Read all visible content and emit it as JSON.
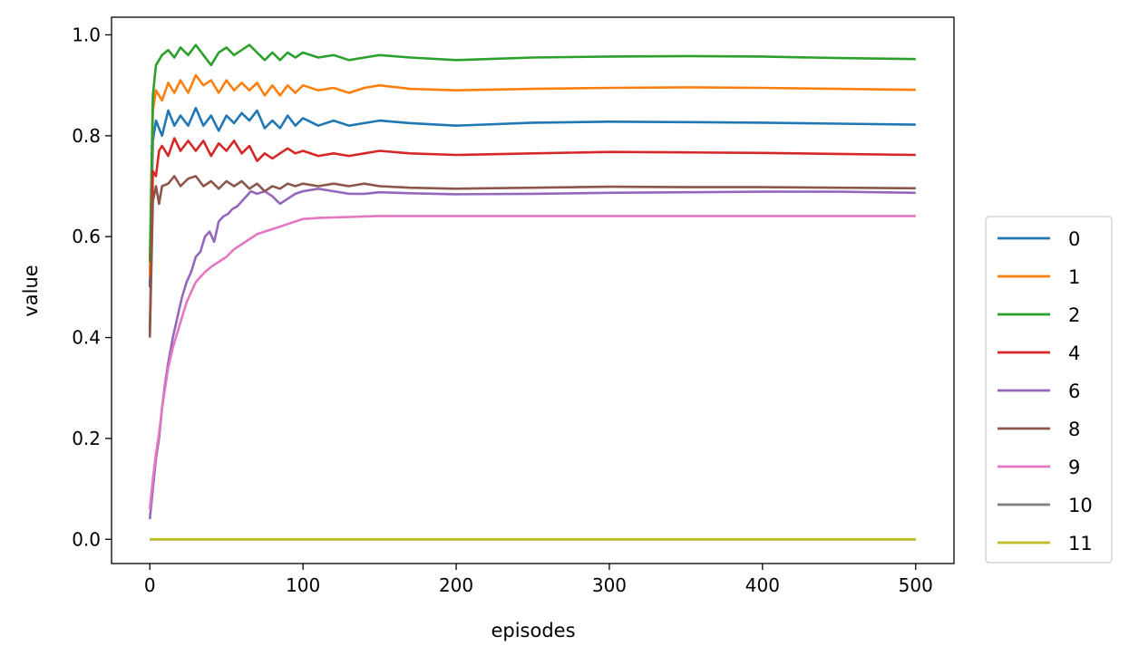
{
  "chart_data": {
    "type": "line",
    "title": "",
    "xlabel": "episodes",
    "ylabel": "value",
    "xlim": [
      -25,
      525
    ],
    "ylim": [
      -0.048,
      1.035
    ],
    "xticks": [
      0,
      100,
      200,
      300,
      400,
      500
    ],
    "yticks": [
      0.0,
      0.2,
      0.4,
      0.6,
      0.8,
      1.0
    ],
    "xtick_labels": [
      "0",
      "100",
      "200",
      "300",
      "400",
      "500"
    ],
    "ytick_labels": [
      "0.0",
      "0.2",
      "0.4",
      "0.6",
      "0.8",
      "1.0"
    ],
    "grid": false,
    "legend_position": "outside-right",
    "series": [
      {
        "name": "0",
        "color": "#1f77b4",
        "points": [
          [
            0,
            0.5
          ],
          [
            2,
            0.79
          ],
          [
            4,
            0.83
          ],
          [
            8,
            0.8
          ],
          [
            12,
            0.85
          ],
          [
            16,
            0.82
          ],
          [
            20,
            0.84
          ],
          [
            25,
            0.82
          ],
          [
            30,
            0.855
          ],
          [
            35,
            0.82
          ],
          [
            40,
            0.84
          ],
          [
            45,
            0.81
          ],
          [
            50,
            0.84
          ],
          [
            55,
            0.825
          ],
          [
            60,
            0.845
          ],
          [
            65,
            0.83
          ],
          [
            70,
            0.85
          ],
          [
            75,
            0.815
          ],
          [
            80,
            0.83
          ],
          [
            85,
            0.815
          ],
          [
            90,
            0.84
          ],
          [
            95,
            0.82
          ],
          [
            100,
            0.835
          ],
          [
            110,
            0.82
          ],
          [
            120,
            0.83
          ],
          [
            130,
            0.82
          ],
          [
            140,
            0.825
          ],
          [
            150,
            0.83
          ],
          [
            170,
            0.825
          ],
          [
            200,
            0.82
          ],
          [
            250,
            0.826
          ],
          [
            300,
            0.828
          ],
          [
            350,
            0.827
          ],
          [
            400,
            0.826
          ],
          [
            450,
            0.824
          ],
          [
            500,
            0.822
          ]
        ]
      },
      {
        "name": "1",
        "color": "#ff7f0e",
        "points": [
          [
            0,
            0.52
          ],
          [
            2,
            0.85
          ],
          [
            4,
            0.89
          ],
          [
            8,
            0.87
          ],
          [
            12,
            0.905
          ],
          [
            16,
            0.885
          ],
          [
            20,
            0.91
          ],
          [
            25,
            0.885
          ],
          [
            30,
            0.92
          ],
          [
            35,
            0.9
          ],
          [
            40,
            0.91
          ],
          [
            45,
            0.885
          ],
          [
            50,
            0.91
          ],
          [
            55,
            0.89
          ],
          [
            60,
            0.905
          ],
          [
            65,
            0.89
          ],
          [
            70,
            0.905
          ],
          [
            75,
            0.88
          ],
          [
            80,
            0.9
          ],
          [
            85,
            0.88
          ],
          [
            90,
            0.9
          ],
          [
            95,
            0.885
          ],
          [
            100,
            0.9
          ],
          [
            110,
            0.89
          ],
          [
            120,
            0.895
          ],
          [
            130,
            0.885
          ],
          [
            140,
            0.895
          ],
          [
            150,
            0.9
          ],
          [
            170,
            0.893
          ],
          [
            200,
            0.89
          ],
          [
            250,
            0.893
          ],
          [
            300,
            0.895
          ],
          [
            350,
            0.896
          ],
          [
            400,
            0.895
          ],
          [
            450,
            0.893
          ],
          [
            500,
            0.891
          ]
        ]
      },
      {
        "name": "2",
        "color": "#2ca02c",
        "points": [
          [
            0,
            0.55
          ],
          [
            2,
            0.88
          ],
          [
            4,
            0.94
          ],
          [
            8,
            0.96
          ],
          [
            12,
            0.97
          ],
          [
            16,
            0.955
          ],
          [
            20,
            0.975
          ],
          [
            25,
            0.96
          ],
          [
            30,
            0.98
          ],
          [
            35,
            0.96
          ],
          [
            40,
            0.94
          ],
          [
            45,
            0.965
          ],
          [
            50,
            0.975
          ],
          [
            55,
            0.96
          ],
          [
            60,
            0.97
          ],
          [
            65,
            0.98
          ],
          [
            70,
            0.965
          ],
          [
            75,
            0.95
          ],
          [
            80,
            0.965
          ],
          [
            85,
            0.95
          ],
          [
            90,
            0.965
          ],
          [
            95,
            0.955
          ],
          [
            100,
            0.965
          ],
          [
            110,
            0.955
          ],
          [
            120,
            0.96
          ],
          [
            130,
            0.95
          ],
          [
            140,
            0.955
          ],
          [
            150,
            0.96
          ],
          [
            170,
            0.955
          ],
          [
            200,
            0.95
          ],
          [
            220,
            0.952
          ],
          [
            250,
            0.955
          ],
          [
            300,
            0.957
          ],
          [
            350,
            0.958
          ],
          [
            400,
            0.957
          ],
          [
            450,
            0.954
          ],
          [
            500,
            0.952
          ]
        ]
      },
      {
        "name": "4",
        "color": "#d62728",
        "points": [
          [
            0,
            0.41
          ],
          [
            2,
            0.73
          ],
          [
            4,
            0.72
          ],
          [
            6,
            0.77
          ],
          [
            8,
            0.78
          ],
          [
            12,
            0.76
          ],
          [
            16,
            0.795
          ],
          [
            20,
            0.77
          ],
          [
            25,
            0.79
          ],
          [
            30,
            0.77
          ],
          [
            35,
            0.79
          ],
          [
            40,
            0.76
          ],
          [
            45,
            0.785
          ],
          [
            50,
            0.77
          ],
          [
            55,
            0.79
          ],
          [
            60,
            0.765
          ],
          [
            65,
            0.78
          ],
          [
            70,
            0.75
          ],
          [
            75,
            0.765
          ],
          [
            80,
            0.755
          ],
          [
            85,
            0.765
          ],
          [
            90,
            0.775
          ],
          [
            95,
            0.765
          ],
          [
            100,
            0.77
          ],
          [
            110,
            0.76
          ],
          [
            120,
            0.765
          ],
          [
            130,
            0.76
          ],
          [
            140,
            0.765
          ],
          [
            150,
            0.77
          ],
          [
            170,
            0.765
          ],
          [
            200,
            0.762
          ],
          [
            250,
            0.765
          ],
          [
            300,
            0.768
          ],
          [
            350,
            0.767
          ],
          [
            400,
            0.766
          ],
          [
            450,
            0.764
          ],
          [
            500,
            0.762
          ]
        ]
      },
      {
        "name": "6",
        "color": "#9467bd",
        "points": [
          [
            0,
            0.04
          ],
          [
            2,
            0.1
          ],
          [
            4,
            0.16
          ],
          [
            6,
            0.2
          ],
          [
            8,
            0.26
          ],
          [
            10,
            0.31
          ],
          [
            12,
            0.35
          ],
          [
            15,
            0.4
          ],
          [
            18,
            0.44
          ],
          [
            21,
            0.48
          ],
          [
            24,
            0.51
          ],
          [
            27,
            0.53
          ],
          [
            30,
            0.56
          ],
          [
            33,
            0.57
          ],
          [
            36,
            0.6
          ],
          [
            39,
            0.61
          ],
          [
            42,
            0.59
          ],
          [
            45,
            0.63
          ],
          [
            48,
            0.64
          ],
          [
            51,
            0.645
          ],
          [
            54,
            0.655
          ],
          [
            57,
            0.66
          ],
          [
            60,
            0.67
          ],
          [
            63,
            0.68
          ],
          [
            66,
            0.69
          ],
          [
            70,
            0.685
          ],
          [
            75,
            0.69
          ],
          [
            80,
            0.68
          ],
          [
            85,
            0.665
          ],
          [
            90,
            0.675
          ],
          [
            95,
            0.685
          ],
          [
            100,
            0.69
          ],
          [
            110,
            0.695
          ],
          [
            120,
            0.69
          ],
          [
            130,
            0.685
          ],
          [
            140,
            0.685
          ],
          [
            150,
            0.688
          ],
          [
            170,
            0.686
          ],
          [
            200,
            0.684
          ],
          [
            250,
            0.685
          ],
          [
            300,
            0.687
          ],
          [
            350,
            0.688
          ],
          [
            400,
            0.689
          ],
          [
            450,
            0.689
          ],
          [
            500,
            0.687
          ]
        ]
      },
      {
        "name": "8",
        "color": "#8c564b",
        "points": [
          [
            0,
            0.4
          ],
          [
            2,
            0.67
          ],
          [
            4,
            0.7
          ],
          [
            6,
            0.665
          ],
          [
            8,
            0.7
          ],
          [
            12,
            0.705
          ],
          [
            16,
            0.72
          ],
          [
            20,
            0.7
          ],
          [
            25,
            0.715
          ],
          [
            30,
            0.72
          ],
          [
            35,
            0.7
          ],
          [
            40,
            0.71
          ],
          [
            45,
            0.695
          ],
          [
            50,
            0.71
          ],
          [
            55,
            0.7
          ],
          [
            60,
            0.71
          ],
          [
            65,
            0.695
          ],
          [
            70,
            0.705
          ],
          [
            75,
            0.69
          ],
          [
            80,
            0.7
          ],
          [
            85,
            0.695
          ],
          [
            90,
            0.705
          ],
          [
            95,
            0.7
          ],
          [
            100,
            0.705
          ],
          [
            110,
            0.7
          ],
          [
            120,
            0.705
          ],
          [
            130,
            0.7
          ],
          [
            140,
            0.705
          ],
          [
            150,
            0.7
          ],
          [
            170,
            0.697
          ],
          [
            200,
            0.695
          ],
          [
            250,
            0.697
          ],
          [
            300,
            0.699
          ],
          [
            350,
            0.698
          ],
          [
            400,
            0.698
          ],
          [
            450,
            0.697
          ],
          [
            500,
            0.696
          ]
        ]
      },
      {
        "name": "9",
        "color": "#e377c2",
        "points": [
          [
            0,
            0.06
          ],
          [
            2,
            0.12
          ],
          [
            4,
            0.17
          ],
          [
            6,
            0.21
          ],
          [
            8,
            0.26
          ],
          [
            10,
            0.3
          ],
          [
            12,
            0.34
          ],
          [
            15,
            0.38
          ],
          [
            18,
            0.41
          ],
          [
            21,
            0.44
          ],
          [
            24,
            0.47
          ],
          [
            27,
            0.49
          ],
          [
            30,
            0.51
          ],
          [
            33,
            0.52
          ],
          [
            36,
            0.53
          ],
          [
            40,
            0.54
          ],
          [
            45,
            0.55
          ],
          [
            50,
            0.56
          ],
          [
            55,
            0.575
          ],
          [
            60,
            0.585
          ],
          [
            65,
            0.595
          ],
          [
            70,
            0.605
          ],
          [
            75,
            0.61
          ],
          [
            80,
            0.615
          ],
          [
            85,
            0.62
          ],
          [
            90,
            0.625
          ],
          [
            95,
            0.63
          ],
          [
            100,
            0.635
          ],
          [
            110,
            0.637
          ],
          [
            120,
            0.638
          ],
          [
            130,
            0.639
          ],
          [
            140,
            0.64
          ],
          [
            150,
            0.641
          ],
          [
            170,
            0.641
          ],
          [
            200,
            0.641
          ],
          [
            250,
            0.641
          ],
          [
            300,
            0.641
          ],
          [
            350,
            0.641
          ],
          [
            400,
            0.641
          ],
          [
            450,
            0.641
          ],
          [
            500,
            0.641
          ]
        ]
      },
      {
        "name": "10",
        "color": "#7f7f7f",
        "points": [
          [
            0,
            0.0
          ],
          [
            500,
            0.0
          ]
        ]
      },
      {
        "name": "11",
        "color": "#bcbd22",
        "points": [
          [
            0,
            0.0
          ],
          [
            500,
            0.0
          ]
        ]
      }
    ]
  }
}
